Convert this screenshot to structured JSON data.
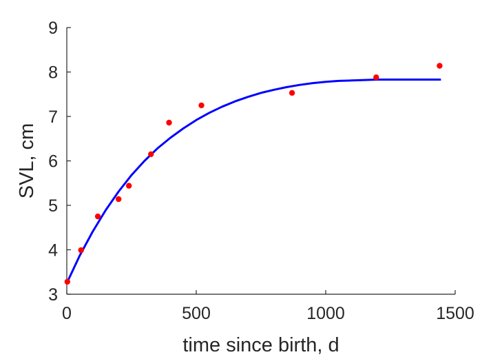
{
  "chart_data": {
    "type": "scatter",
    "title": "",
    "xlabel": "time since birth, d",
    "ylabel": "SVL, cm",
    "xlim": [
      0,
      1500
    ],
    "ylim": [
      3,
      9
    ],
    "xticks": [
      0,
      500,
      1000,
      1500
    ],
    "yticks": [
      3,
      4,
      5,
      6,
      7,
      8,
      9
    ],
    "xtick_labels": [
      "0",
      "500",
      "1000",
      "1500"
    ],
    "ytick_labels": [
      "3",
      "4",
      "5",
      "6",
      "7",
      "8",
      "9"
    ],
    "grid": false,
    "legend": "none",
    "series": [
      {
        "kind": "points",
        "color": "#ff0000",
        "x": [
          2,
          55,
          120,
          200,
          240,
          325,
          395,
          520,
          870,
          1195,
          1440
        ],
        "y": [
          3.28,
          3.99,
          4.75,
          5.14,
          5.44,
          6.15,
          6.86,
          7.25,
          7.53,
          7.88,
          8.14
        ]
      },
      {
        "kind": "line",
        "color": "#0000ff",
        "x": [
          0,
          50,
          100,
          150,
          200,
          250,
          300,
          350,
          400,
          450,
          500,
          550,
          600,
          650,
          700,
          750,
          800,
          850,
          900,
          950,
          1000,
          1050,
          1100,
          1150,
          1200,
          1250,
          1300,
          1350,
          1400,
          1445
        ],
        "y": [
          3.25,
          3.87,
          4.41,
          4.89,
          5.31,
          5.68,
          6.0,
          6.28,
          6.52,
          6.73,
          6.92,
          7.08,
          7.22,
          7.34,
          7.44,
          7.53,
          7.6,
          7.66,
          7.71,
          7.75,
          7.78,
          7.8,
          7.81,
          7.82,
          7.83,
          7.83,
          7.83,
          7.83,
          7.83,
          7.83
        ]
      }
    ]
  }
}
